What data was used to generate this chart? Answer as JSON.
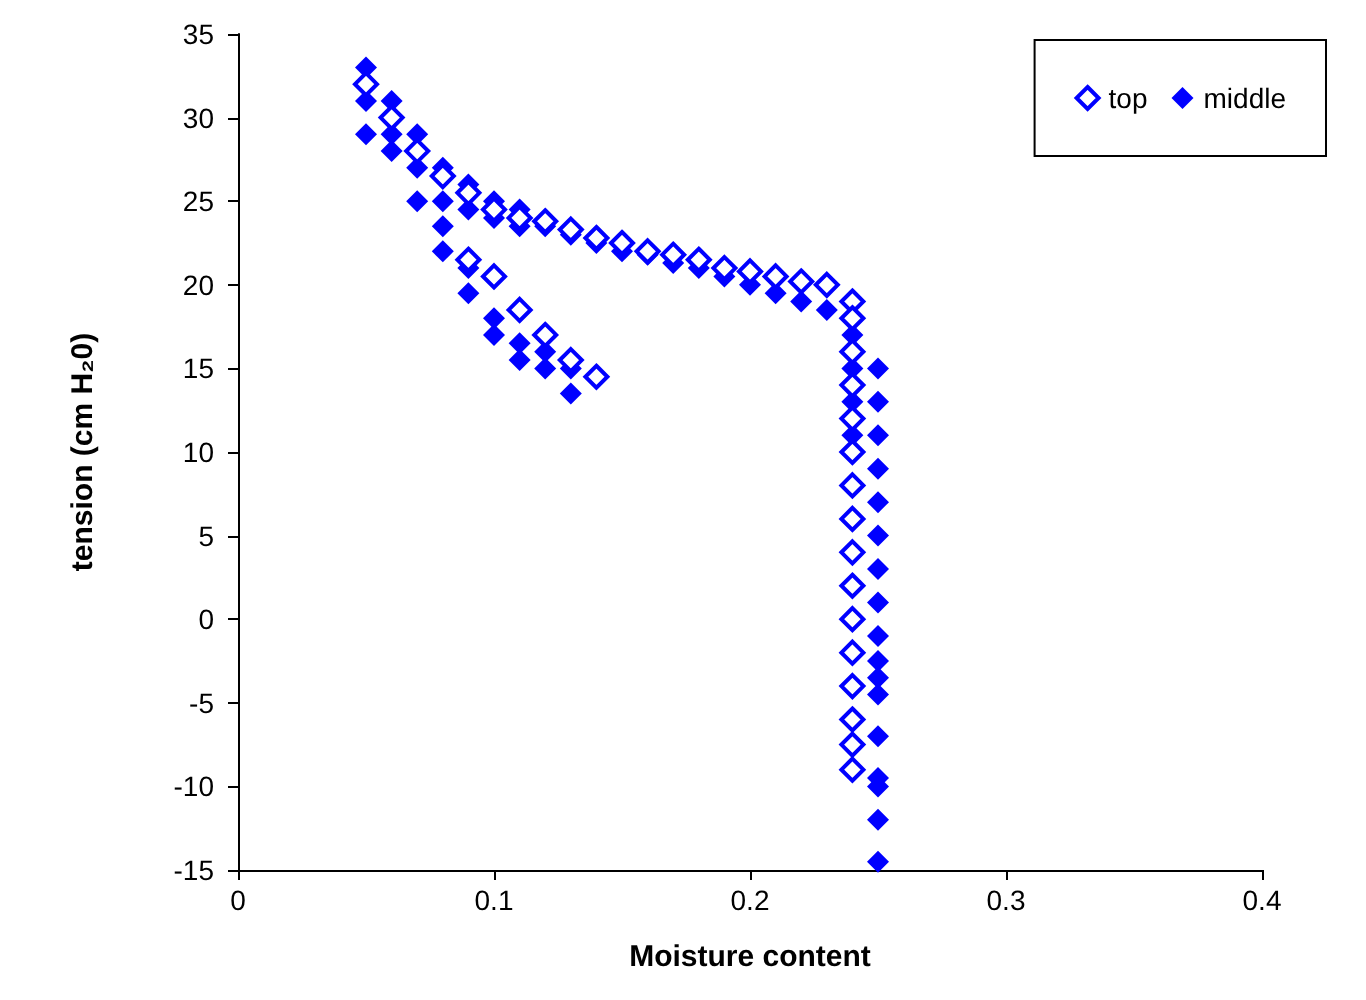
{
  "chart_data": {
    "type": "scatter",
    "xlabel": "Moisture content",
    "ylabel": "tension (cm H₂0)",
    "xlim": [
      0,
      0.4
    ],
    "xticks": [
      0,
      0.1,
      0.2,
      0.3,
      0.4
    ],
    "ylim": [
      -15,
      35
    ],
    "yticks": [
      -15,
      -10,
      -5,
      0,
      5,
      10,
      15,
      20,
      25,
      30,
      35
    ],
    "grid": false,
    "legend": "top right",
    "marker": "diamond",
    "series": [
      {
        "name": "top",
        "color": "#0000ff",
        "x": [
          0.05,
          0.06,
          0.07,
          0.08,
          0.09,
          0.1,
          0.11,
          0.12,
          0.13,
          0.14,
          0.15,
          0.16,
          0.17,
          0.18,
          0.19,
          0.2,
          0.21,
          0.22,
          0.23,
          0.24,
          0.24,
          0.24,
          0.24,
          0.24,
          0.24,
          0.24,
          0.24,
          0.24,
          0.24,
          0.24,
          0.24,
          0.24,
          0.24,
          0.24,
          0.24,
          0.09,
          0.1,
          0.11,
          0.12,
          0.13,
          0.14
        ],
        "values": [
          32,
          30,
          28,
          26.5,
          25.5,
          24.5,
          24,
          23.8,
          23.3,
          22.8,
          22.5,
          22,
          21.8,
          21.5,
          21,
          20.8,
          20.5,
          20.2,
          20,
          19,
          18,
          16,
          14,
          12,
          10,
          8,
          6,
          4,
          2,
          0,
          -2,
          -4,
          -6,
          -7.5,
          -9,
          21.5,
          20.5,
          18.5,
          17,
          15.5,
          14.5
        ]
      },
      {
        "name": "middle",
        "color": "#0000ff",
        "x": [
          0.05,
          0.05,
          0.05,
          0.06,
          0.06,
          0.06,
          0.07,
          0.07,
          0.07,
          0.08,
          0.08,
          0.08,
          0.08,
          0.09,
          0.09,
          0.09,
          0.09,
          0.1,
          0.1,
          0.1,
          0.1,
          0.11,
          0.11,
          0.11,
          0.11,
          0.12,
          0.12,
          0.12,
          0.13,
          0.13,
          0.13,
          0.14,
          0.15,
          0.16,
          0.17,
          0.18,
          0.19,
          0.2,
          0.21,
          0.22,
          0.23,
          0.24,
          0.24,
          0.24,
          0.24,
          0.25,
          0.25,
          0.25,
          0.25,
          0.25,
          0.25,
          0.25,
          0.25,
          0.25,
          0.25,
          0.25,
          0.25,
          0.25,
          0.25,
          0.25,
          0.25,
          0.25
        ],
        "values": [
          33,
          31,
          29,
          31,
          29,
          28,
          29,
          27,
          25,
          27,
          25,
          23.5,
          22,
          26,
          24.5,
          21,
          19.5,
          25,
          24,
          18,
          17,
          24.5,
          23.5,
          16.5,
          15.5,
          23.5,
          16,
          15,
          23,
          15,
          13.5,
          22.5,
          22,
          21.8,
          21.3,
          21,
          20.5,
          20,
          19.5,
          19,
          18.5,
          17,
          15,
          13,
          11,
          15,
          13,
          11,
          9,
          7,
          5,
          3,
          1,
          -1,
          -2.5,
          -3.5,
          -4.5,
          -7,
          -9.5,
          -10,
          -12,
          -14.5
        ]
      }
    ]
  }
}
